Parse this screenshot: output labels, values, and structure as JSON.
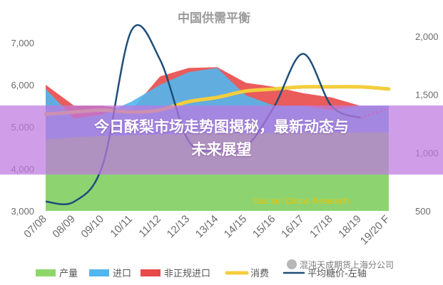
{
  "article": {
    "title_line1": "今日酥梨市场走势图揭秘，最新动态与",
    "title_line2": "未来展望"
  },
  "watermark": {
    "text": "混沌天成期货上海分公司",
    "icon": "wechat-icon"
  },
  "colors": {
    "production": "#8fd66a",
    "imports": "#52b6ee",
    "informal_imports": "#e84a4a",
    "consumption": "#f4cd3c",
    "price": "#1f4e79",
    "source_text": "#f2c200"
  },
  "chart_data": {
    "type": "area",
    "title": "中国供需平衡",
    "source": "Source: Chaos Research",
    "categories": [
      "07/08",
      "08/09",
      "09/10",
      "10/11",
      "11/12",
      "12/13",
      "13/14",
      "14/15",
      "15/16",
      "16/17",
      "17/18",
      "18/19",
      "19/20 F"
    ],
    "y_left": {
      "ticks": [
        "3,000",
        "4,000",
        "5,000",
        "6,000",
        "7,000"
      ],
      "ylim": [
        3000,
        7000
      ]
    },
    "y_right": {
      "ticks": [
        "500",
        "1,000",
        "1,500",
        "2,000"
      ],
      "ylim": [
        500,
        2000
      ]
    },
    "series": [
      {
        "name": "产量",
        "kind": "area",
        "axis": "left",
        "values": [
          4700,
          4750,
          4780,
          4800,
          4820,
          4830,
          4840,
          4850,
          4850,
          4860,
          4860,
          4870,
          4870
        ]
      },
      {
        "name": "进口",
        "kind": "area",
        "axis": "left",
        "values": [
          5900,
          5200,
          5300,
          5600,
          6000,
          6300,
          6400,
          5750,
          5500,
          5500,
          5400,
          5500,
          5500
        ]
      },
      {
        "name": "非正规进口",
        "kind": "area",
        "axis": "left",
        "values": [
          6000,
          5500,
          5500,
          5400,
          6200,
          6400,
          6420,
          6050,
          5950,
          5800,
          5700,
          5500,
          5500
        ]
      },
      {
        "name": "消费",
        "kind": "line",
        "axis": "left",
        "values": [
          5300,
          5350,
          5400,
          5350,
          5400,
          5600,
          5700,
          5850,
          5900,
          5950,
          5950,
          5950,
          5900
        ]
      },
      {
        "name": "平均糖价-左轴",
        "kind": "line",
        "axis": "right",
        "values": [
          580,
          580,
          900,
          2050,
          1800,
          1100,
          1020,
          1050,
          1400,
          1850,
          1400,
          1300,
          1380
        ],
        "forecast_from_index": 11
      }
    ],
    "legend": {
      "position": "bottom"
    },
    "grid": false
  }
}
